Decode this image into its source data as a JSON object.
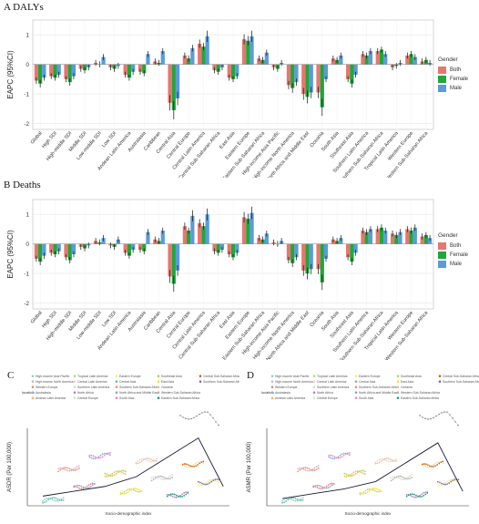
{
  "chart_data": [
    {
      "type": "bar",
      "panel_label": "A DALYs",
      "ylabel": "EAPC (95%CI)",
      "ylim": [
        -2.2,
        1.5
      ],
      "yticks": [
        -2,
        -1,
        0,
        1
      ],
      "grid": true,
      "legend_position": "right",
      "legend_title": "Gender",
      "categories": [
        "Global",
        "High SDI",
        "High-middle SDI",
        "Middle SDI",
        "Low-middle SDI",
        "Low SDI",
        "Andean Latin America",
        "Australasia",
        "Caribbean",
        "Central Asia",
        "Central Europe",
        "Central Latin America",
        "Central Sub-Saharan Africa",
        "East Asia",
        "Eastern Europe",
        "Eastern Sub-Saharan Africa",
        "High-income Asia Pacific",
        "High-income North America",
        "North Africa and Middle East",
        "Oceania",
        "South Asia",
        "Southeast Asia",
        "Southern Latin America",
        "Southern Sub-Saharan Africa",
        "Tropical Latin America",
        "Western Europe",
        "Western Sub-Saharan Africa"
      ],
      "series": [
        {
          "name": "Both",
          "color": "#e8766f",
          "values": [
            -0.55,
            -0.4,
            -0.5,
            -0.15,
            0.05,
            -0.1,
            -0.35,
            -0.25,
            0.1,
            -1.3,
            0.3,
            0.7,
            -0.2,
            -0.45,
            0.85,
            0.2,
            -0.1,
            -0.7,
            -1.0,
            -0.95,
            0.2,
            -0.5,
            0.35,
            0.45,
            -0.1,
            0.3,
            0.1
          ]
        },
        {
          "name": "Female",
          "color": "#22a63c",
          "values": [
            -0.65,
            -0.45,
            -0.6,
            -0.2,
            0.0,
            -0.15,
            -0.45,
            -0.3,
            0.05,
            -1.55,
            0.2,
            0.6,
            -0.25,
            -0.5,
            0.8,
            0.15,
            -0.15,
            -0.8,
            -1.1,
            -1.45,
            0.15,
            -0.65,
            0.3,
            0.5,
            -0.05,
            0.35,
            0.15
          ]
        },
        {
          "name": "Male",
          "color": "#5b9bd9",
          "values": [
            -0.45,
            -0.35,
            -0.4,
            -0.1,
            0.25,
            -0.05,
            -0.25,
            0.35,
            0.45,
            -1.15,
            0.55,
            0.95,
            -0.1,
            -0.4,
            0.95,
            0.4,
            0.05,
            -0.6,
            -0.95,
            -0.5,
            0.3,
            -0.35,
            0.45,
            0.35,
            0.05,
            0.25,
            0.05
          ]
        }
      ]
    },
    {
      "type": "bar",
      "panel_label": "B Deaths",
      "ylabel": "EAPC (95%CI)",
      "ylim": [
        -2.2,
        1.5
      ],
      "yticks": [
        -2,
        -1,
        0,
        1
      ],
      "grid": true,
      "legend_position": "right",
      "legend_title": "Gender",
      "categories": [
        "Global",
        "High SDI",
        "High-middle SDI",
        "Middle SDI",
        "Low-middle SDI",
        "Low SDI",
        "Andean Latin America",
        "Australasia",
        "Caribbean",
        "Central Asia",
        "Central Europe",
        "Central Latin America",
        "Central Sub-Saharan Africa",
        "East Asia",
        "Eastern Europe",
        "Eastern Sub-Saharan Africa",
        "High-income Asia Pacific",
        "High-income North America",
        "North Africa and Middle East",
        "Oceania",
        "South Asia",
        "Southeast Asia",
        "Southern Latin America",
        "Southern Sub-Saharan Africa",
        "Tropical Latin America",
        "Western Europe",
        "Western Sub-Saharan Africa"
      ],
      "series": [
        {
          "name": "Both",
          "color": "#e8766f",
          "values": [
            -0.5,
            -0.3,
            -0.45,
            -0.1,
            0.1,
            -0.05,
            -0.3,
            -0.2,
            0.15,
            -1.1,
            0.6,
            0.7,
            -0.25,
            -0.35,
            0.9,
            0.2,
            0.05,
            -0.55,
            -0.9,
            -0.85,
            0.15,
            -0.45,
            0.45,
            0.5,
            0.35,
            0.5,
            0.25
          ]
        },
        {
          "name": "Female",
          "color": "#22a63c",
          "values": [
            -0.6,
            -0.35,
            -0.55,
            -0.15,
            0.05,
            -0.1,
            -0.4,
            -0.25,
            0.1,
            -1.35,
            0.45,
            0.6,
            -0.3,
            -0.45,
            0.85,
            0.15,
            0.0,
            -0.65,
            -1.0,
            -1.3,
            0.1,
            -0.6,
            0.4,
            0.55,
            0.3,
            0.45,
            0.3
          ]
        },
        {
          "name": "Male",
          "color": "#5b9bd9",
          "values": [
            -0.4,
            -0.25,
            -0.35,
            -0.05,
            0.2,
            0.15,
            -0.2,
            0.4,
            0.45,
            -0.9,
            0.95,
            1.0,
            -0.2,
            -0.3,
            1.05,
            0.35,
            0.1,
            -0.45,
            -0.85,
            -0.5,
            0.2,
            -0.3,
            0.5,
            0.45,
            0.4,
            0.55,
            0.2
          ]
        }
      ]
    },
    {
      "type": "scatter",
      "panel_label": "C",
      "xlabel": "Socio-demographic index",
      "ylabel": "ASDR (Per 100,000)",
      "legend_title": "location",
      "legend_entries": [
        "High-income Asia Pacific",
        "High-income North America",
        "Western Europe",
        "Australasia",
        "Andean Latin America",
        "Tropical Latin America",
        "Central Latin America",
        "Southern Latin America",
        "North Africa",
        "Central Europe",
        "Eastern Europe",
        "Central Asia",
        "Southern Sub-Saharan Africa",
        "North Africa and Middle East",
        "South Asia",
        "Southeast Asia",
        "East Asia",
        "Oceania",
        "Western Sub-Saharan Africa",
        "Eastern Sub-Saharan Africa",
        "Central Sub-Saharan Africa",
        "Southern Sub-Saharan Africa"
      ],
      "legend_colors": [
        "#8dd3c7",
        "#bebada",
        "#fb8072",
        "#80b1d3",
        "#fdb462",
        "#b3de69",
        "#fccde5",
        "#d9d9d9",
        "#bc80bd",
        "#ccebc5",
        "#ffed6f",
        "#66c2a5",
        "#fc8d62",
        "#8da0cb",
        "#e78ac3",
        "#a6d854",
        "#ffd92f",
        "#e5c494",
        "#b3b3b3",
        "#1b9e77",
        "#d95f02",
        "#7570b3"
      ],
      "curve": {
        "x": [
          0.3,
          0.4,
          0.5,
          0.6,
          0.7,
          0.8,
          0.88
        ],
        "y": [
          2,
          3,
          4,
          6,
          10,
          14,
          4
        ]
      }
    },
    {
      "type": "scatter",
      "panel_label": "D",
      "xlabel": "Socio-demographic index",
      "ylabel": "ASMR (Per 100,000)",
      "legend_title": "location",
      "legend_entries": [
        "High-income Asia Pacific",
        "High-income North America",
        "Western Europe",
        "Australasia",
        "Andean Latin America",
        "Tropical Latin America",
        "Central Latin America",
        "Southern Latin America",
        "North Africa",
        "Central Europe",
        "Eastern Europe",
        "Central Asia",
        "Southern Sub-Saharan Africa",
        "North Africa and Middle East",
        "South Asia",
        "Southeast Asia",
        "East Asia",
        "Oceania",
        "Western Sub-Saharan Africa",
        "Eastern Sub-Saharan Africa",
        "Central Sub-Saharan Africa",
        "Southern Sub-Saharan Africa"
      ],
      "legend_colors": [
        "#8dd3c7",
        "#bebada",
        "#fb8072",
        "#80b1d3",
        "#fdb462",
        "#b3de69",
        "#fccde5",
        "#d9d9d9",
        "#bc80bd",
        "#ccebc5",
        "#ffed6f",
        "#66c2a5",
        "#fc8d62",
        "#8da0cb",
        "#e78ac3",
        "#a6d854",
        "#ffd92f",
        "#e5c494",
        "#b3b3b3",
        "#1b9e77",
        "#d95f02",
        "#7570b3"
      ],
      "curve": {
        "x": [
          0.3,
          0.4,
          0.5,
          0.6,
          0.7,
          0.8,
          0.88
        ],
        "y": [
          1.5,
          2.5,
          3.5,
          5,
          9,
          13,
          3
        ]
      }
    }
  ]
}
